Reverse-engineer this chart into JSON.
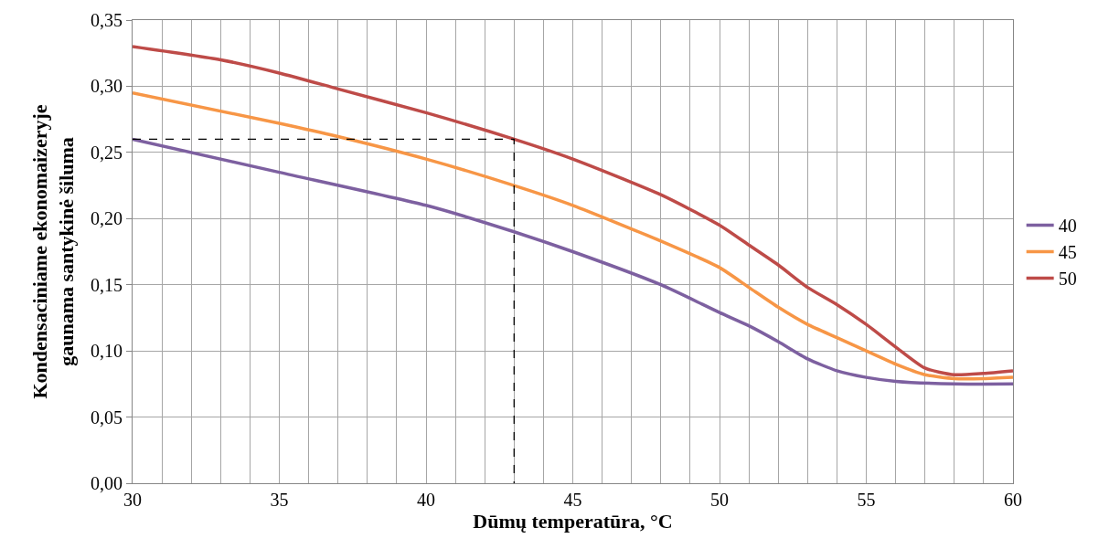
{
  "chart_data": {
    "type": "line",
    "xlabel": "Dūmų temperatūra, °C",
    "ylabel": "Kondensaciniame ekonomaizeryje\ngaunama santykinė šiluma",
    "xlim": [
      30,
      60
    ],
    "ylim": [
      0,
      0.35
    ],
    "xticks": [
      30,
      {
        "value": 31,
        "label": null
      },
      {
        "value": 32,
        "label": null
      },
      {
        "value": 33,
        "label": null
      },
      {
        "value": 34,
        "label": null
      },
      35,
      {
        "value": 36,
        "label": null
      },
      {
        "value": 37,
        "label": null
      },
      {
        "value": 38,
        "label": null
      },
      {
        "value": 39,
        "label": null
      },
      40,
      {
        "value": 41,
        "label": null
      },
      {
        "value": 42,
        "label": null
      },
      {
        "value": 43,
        "label": null
      },
      {
        "value": 44,
        "label": null
      },
      45,
      {
        "value": 46,
        "label": null
      },
      {
        "value": 47,
        "label": null
      },
      {
        "value": 48,
        "label": null
      },
      {
        "value": 49,
        "label": null
      },
      50,
      {
        "value": 51,
        "label": null
      },
      {
        "value": 52,
        "label": null
      },
      {
        "value": 53,
        "label": null
      },
      {
        "value": 54,
        "label": null
      },
      55,
      {
        "value": 56,
        "label": null
      },
      {
        "value": 57,
        "label": null
      },
      {
        "value": 58,
        "label": null
      },
      {
        "value": 59,
        "label": null
      },
      60
    ],
    "yticks": [
      {
        "value": 0,
        "label": "0,00"
      },
      {
        "value": 0.05,
        "label": "0,05"
      },
      {
        "value": 0.1,
        "label": "0,10"
      },
      {
        "value": 0.15,
        "label": "0,15"
      },
      {
        "value": 0.2,
        "label": "0,20"
      },
      {
        "value": 0.25,
        "label": "0,25"
      },
      {
        "value": 0.3,
        "label": "0,30"
      },
      {
        "value": 0.35,
        "label": "0,35"
      }
    ],
    "grid": true,
    "legend": "right",
    "marker": "none",
    "line_style": "solid",
    "series": [
      {
        "name": "40",
        "color": "#7d60a0",
        "x": [
          30,
          35,
          40,
          43,
          45,
          48,
          50,
          51,
          52,
          53,
          54,
          55,
          56,
          58,
          60
        ],
        "values": [
          0.26,
          0.235,
          0.21,
          0.19,
          0.175,
          0.15,
          0.129,
          0.119,
          0.107,
          0.094,
          0.085,
          0.08,
          0.077,
          0.075,
          0.075
        ]
      },
      {
        "name": "45",
        "color": "#f79646",
        "x": [
          30,
          35,
          37,
          40,
          43,
          45,
          48,
          50,
          51,
          52,
          53,
          54,
          55,
          56,
          57,
          58,
          59,
          60
        ],
        "values": [
          0.295,
          0.272,
          0.262,
          0.245,
          0.225,
          0.21,
          0.183,
          0.163,
          0.148,
          0.133,
          0.12,
          0.11,
          0.1,
          0.09,
          0.082,
          0.079,
          0.079,
          0.08
        ]
      },
      {
        "name": "50",
        "color": "#be4b48",
        "x": [
          30,
          33,
          35,
          37,
          40,
          43,
          45,
          48,
          50,
          51,
          52,
          53,
          54,
          55,
          56,
          57,
          58,
          59,
          60
        ],
        "values": [
          0.33,
          0.32,
          0.31,
          0.298,
          0.28,
          0.26,
          0.245,
          0.218,
          0.195,
          0.18,
          0.165,
          0.148,
          0.135,
          0.12,
          0.103,
          0.087,
          0.082,
          0.083,
          0.085
        ]
      },
      {
        "color": "#000000",
        "line_style": "dashed",
        "x": [
          30,
          43,
          43
        ],
        "values": [
          0.26,
          0.26,
          0
        ]
      }
    ]
  }
}
